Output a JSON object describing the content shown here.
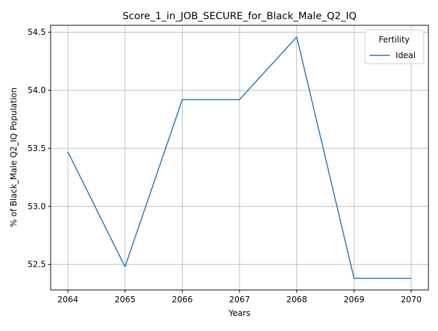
{
  "chart_data": {
    "type": "line",
    "title": "Score_1_in_JOB_SECURE_for_Black_Male_Q2_IQ",
    "xlabel": "Years",
    "ylabel": "% of Black_Male Q2_IQ Population",
    "x": [
      2064,
      2065,
      2066,
      2067,
      2068,
      2069,
      2070
    ],
    "xticks": [
      "2064",
      "2065",
      "2066",
      "2067",
      "2068",
      "2069",
      "2070"
    ],
    "yticks": [
      "52.5",
      "53.0",
      "53.5",
      "54.0",
      "54.5"
    ],
    "xlim": [
      2063.7,
      2070.3
    ],
    "ylim": [
      52.28,
      54.56
    ],
    "grid": true,
    "legend": {
      "title": "Fertility",
      "placement": "top-right"
    },
    "series": [
      {
        "name": "Ideal",
        "color": "#1f77b4",
        "values": [
          53.47,
          52.48,
          53.92,
          53.92,
          54.46,
          52.38,
          52.38
        ]
      }
    ]
  }
}
